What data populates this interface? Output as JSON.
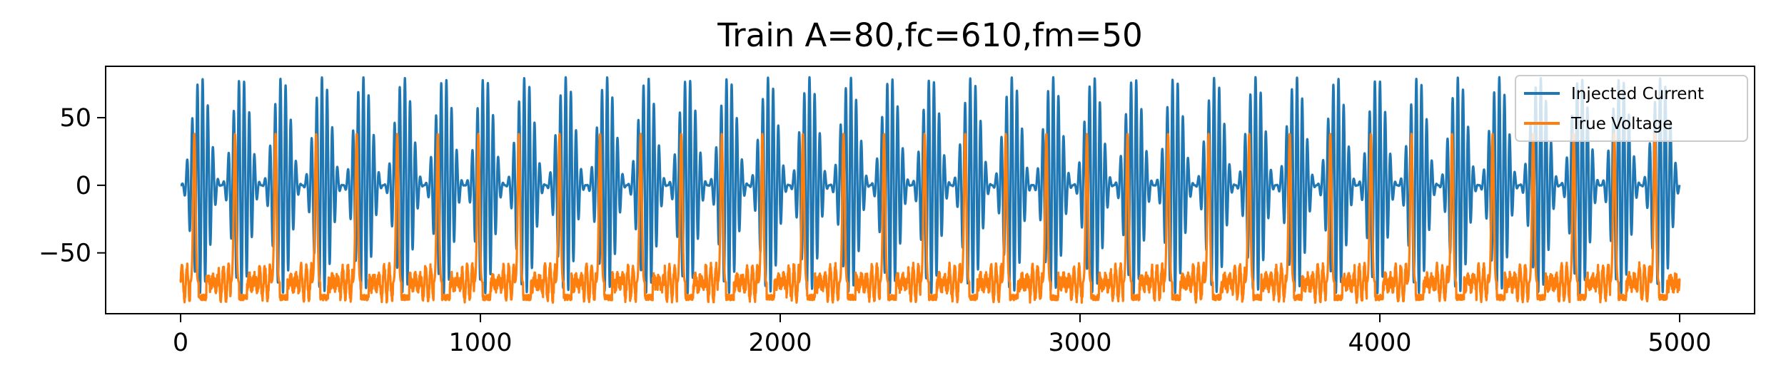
{
  "chart_data": {
    "type": "line",
    "title": "Train A=80,fc=610,fm=50",
    "xlabel": "",
    "ylabel": "",
    "xlim": [
      -250,
      5250
    ],
    "ylim": [
      -95,
      88
    ],
    "x_ticks": [
      0,
      1000,
      2000,
      3000,
      4000,
      5000
    ],
    "x_tick_labels": [
      "0",
      "1000",
      "2000",
      "3000",
      "4000",
      "5000"
    ],
    "y_ticks": [
      -50,
      0,
      50
    ],
    "y_tick_labels": [
      "−50",
      "0",
      "50"
    ],
    "grid": false,
    "legend_position": "top-right",
    "series": [
      {
        "name": "Injected Current",
        "color": "#1f77b4",
        "description_params": {
          "amplitude": 80,
          "carrier_frequency": 610,
          "modulation_frequency": 50,
          "x_start": 0,
          "x_end": 5000
        },
        "summary": {
          "min": -80,
          "max": 80,
          "bursts": 37
        }
      },
      {
        "name": "True Voltage",
        "color": "#ff7f0e",
        "summary": {
          "baseline": -72,
          "spike_peak": 38,
          "spike_trough": -83,
          "spikes": 37,
          "x_start": 0,
          "x_end": 5000
        }
      }
    ]
  }
}
